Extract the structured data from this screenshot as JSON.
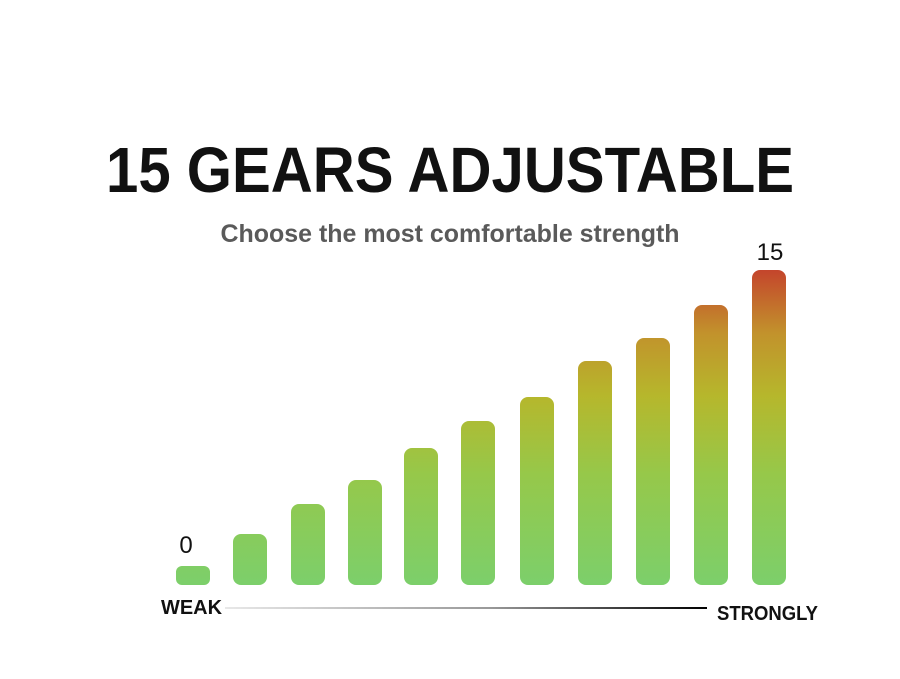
{
  "title": "15 GEARS ADJUSTABLE",
  "subtitle": "Choose the most comfortable strength",
  "scale": {
    "min_label": "0",
    "max_label": "15",
    "weak": "WEAK",
    "strong": "STRONGLY"
  }
}
